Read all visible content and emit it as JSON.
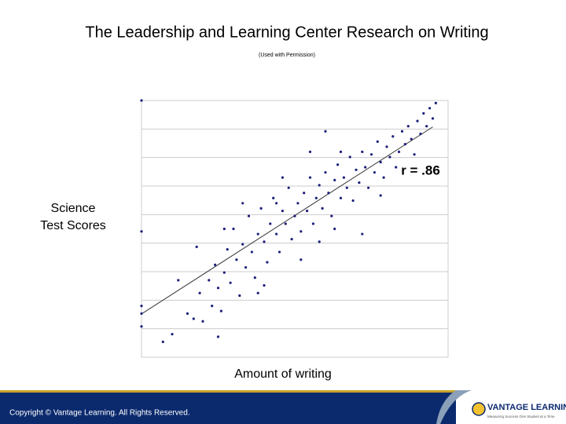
{
  "chart_data": {
    "type": "scatter",
    "title": "The Leadership and Learning Center Research on Writing",
    "subtitle": "(Used with Permission)",
    "x_label": "Amount of writing",
    "y_label": "Science Test Scores",
    "annotation": "r = .86",
    "color": "#1c1f7a",
    "grid": true,
    "trendline": true,
    "xlim": [
      0,
      100
    ],
    "ylim": [
      0,
      100
    ],
    "x": [
      0,
      0,
      0,
      0,
      0,
      7,
      10,
      12,
      15,
      17,
      19,
      20,
      22,
      23,
      24,
      25,
      26,
      27,
      28,
      29,
      30,
      31,
      32,
      33,
      34,
      35,
      36,
      37,
      38,
      39,
      40,
      41,
      42,
      43,
      44,
      45,
      46,
      47,
      48,
      49,
      50,
      51,
      52,
      53,
      54,
      55,
      56,
      57,
      58,
      59,
      60,
      61,
      62,
      63,
      64,
      65,
      66,
      67,
      68,
      69,
      70,
      71,
      72,
      73,
      74,
      75,
      76,
      77,
      78,
      79,
      80,
      81,
      82,
      83,
      84,
      85,
      86,
      87,
      88,
      89,
      90,
      91,
      92,
      93,
      94,
      95,
      96,
      72,
      65,
      58,
      44,
      38,
      52,
      27,
      60,
      18,
      33,
      46,
      25,
      40,
      63,
      78,
      55
    ],
    "y": [
      100,
      49,
      20,
      12,
      17,
      6,
      9,
      30,
      17,
      15,
      25,
      14,
      30,
      20,
      36,
      27,
      18,
      33,
      42,
      29,
      50,
      38,
      24,
      44,
      35,
      55,
      41,
      31,
      48,
      58,
      45,
      37,
      52,
      62,
      48,
      41,
      57,
      52,
      66,
      46,
      55,
      60,
      49,
      64,
      57,
      70,
      52,
      62,
      67,
      58,
      72,
      64,
      55,
      69,
      75,
      62,
      70,
      66,
      78,
      61,
      73,
      68,
      80,
      74,
      66,
      79,
      72,
      84,
      76,
      70,
      82,
      78,
      86,
      74,
      80,
      88,
      83,
      90,
      85,
      79,
      92,
      87,
      95,
      90,
      97,
      93,
      99,
      48,
      80,
      45,
      60,
      25,
      38,
      50,
      88,
      43,
      60,
      70,
      8,
      28,
      50,
      63,
      80
    ]
  },
  "footer": {
    "copyright": "Copyright © Vantage Learning. All Rights Reserved.",
    "logo": "VANTAGE LEARNING",
    "tagline": "Measuring Success One Student at a Time"
  }
}
